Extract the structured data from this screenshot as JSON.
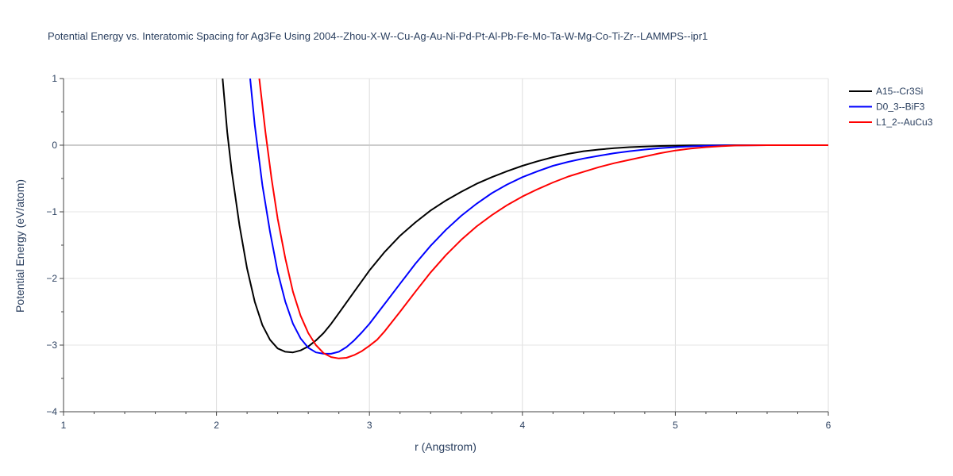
{
  "chart_data": {
    "type": "line",
    "title": "Potential Energy vs. Interatomic Spacing for Ag3Fe Using 2004--Zhou-X-W--Cu-Ag-Au-Ni-Pd-Pt-Al-Pb-Fe-Mo-Ta-W-Mg-Co-Ti-Zr--LAMMPS--ipr1",
    "xlabel": "r (Angstrom)",
    "ylabel": "Potential Energy (eV/atom)",
    "xlim": [
      1,
      6
    ],
    "ylim": [
      -4,
      1
    ],
    "x_ticks": [
      1,
      2,
      3,
      4,
      5,
      6
    ],
    "y_ticks": [
      1,
      0,
      -1,
      -2,
      -3,
      -4
    ],
    "x_tick_labels": [
      "1",
      "2",
      "3",
      "4",
      "5",
      "6"
    ],
    "y_tick_labels": [
      "1",
      "0",
      "−1",
      "−2",
      "−3",
      "−4"
    ],
    "grid": true,
    "legend_position": "top-right",
    "series": [
      {
        "name": "A15--Cr3Si",
        "color": "#000000",
        "x": [
          2.04,
          2.07,
          2.1,
          2.15,
          2.2,
          2.25,
          2.3,
          2.35,
          2.4,
          2.45,
          2.5,
          2.55,
          2.6,
          2.65,
          2.7,
          2.75,
          2.8,
          2.9,
          3.0,
          3.1,
          3.2,
          3.3,
          3.4,
          3.5,
          3.6,
          3.7,
          3.8,
          3.9,
          4.0,
          4.1,
          4.2,
          4.3,
          4.4,
          4.5,
          4.6,
          4.7,
          4.8,
          4.9,
          5.0,
          5.1,
          5.2,
          5.3,
          5.4,
          5.5,
          5.6,
          5.8,
          6.0
        ],
        "y": [
          1.0,
          0.2,
          -0.4,
          -1.2,
          -1.85,
          -2.35,
          -2.7,
          -2.92,
          -3.05,
          -3.1,
          -3.11,
          -3.08,
          -3.02,
          -2.93,
          -2.82,
          -2.68,
          -2.52,
          -2.2,
          -1.88,
          -1.6,
          -1.36,
          -1.16,
          -0.98,
          -0.83,
          -0.7,
          -0.58,
          -0.48,
          -0.39,
          -0.31,
          -0.24,
          -0.18,
          -0.13,
          -0.09,
          -0.065,
          -0.045,
          -0.03,
          -0.02,
          -0.012,
          -0.007,
          -0.004,
          -0.002,
          -0.001,
          0.0,
          0.0,
          0.0,
          0.0,
          0.0
        ]
      },
      {
        "name": "D0_3--BiF3",
        "color": "#0000ff",
        "x": [
          2.22,
          2.25,
          2.3,
          2.35,
          2.4,
          2.45,
          2.5,
          2.55,
          2.6,
          2.65,
          2.7,
          2.75,
          2.8,
          2.85,
          2.9,
          2.95,
          3.0,
          3.1,
          3.2,
          3.3,
          3.4,
          3.5,
          3.6,
          3.7,
          3.8,
          3.9,
          4.0,
          4.1,
          4.2,
          4.3,
          4.4,
          4.5,
          4.6,
          4.7,
          4.8,
          4.9,
          5.0,
          5.1,
          5.2,
          5.3,
          5.4,
          5.6,
          5.8,
          6.0
        ],
        "y": [
          1.0,
          0.3,
          -0.6,
          -1.3,
          -1.9,
          -2.35,
          -2.68,
          -2.9,
          -3.04,
          -3.11,
          -3.13,
          -3.13,
          -3.1,
          -3.03,
          -2.93,
          -2.81,
          -2.68,
          -2.38,
          -2.08,
          -1.78,
          -1.51,
          -1.27,
          -1.06,
          -0.88,
          -0.72,
          -0.59,
          -0.48,
          -0.39,
          -0.31,
          -0.25,
          -0.2,
          -0.16,
          -0.12,
          -0.09,
          -0.065,
          -0.045,
          -0.03,
          -0.018,
          -0.01,
          -0.005,
          -0.002,
          0.0,
          0.0,
          0.0
        ]
      },
      {
        "name": "L1_2--AuCu3",
        "color": "#ff0000",
        "x": [
          2.28,
          2.32,
          2.36,
          2.4,
          2.45,
          2.5,
          2.55,
          2.6,
          2.65,
          2.7,
          2.75,
          2.8,
          2.85,
          2.9,
          2.95,
          3.0,
          3.05,
          3.1,
          3.2,
          3.3,
          3.4,
          3.5,
          3.6,
          3.7,
          3.8,
          3.9,
          4.0,
          4.1,
          4.2,
          4.3,
          4.4,
          4.5,
          4.6,
          4.7,
          4.8,
          4.9,
          5.0,
          5.1,
          5.2,
          5.3,
          5.4,
          5.6,
          5.8,
          6.0
        ],
        "y": [
          1.0,
          0.2,
          -0.5,
          -1.1,
          -1.7,
          -2.2,
          -2.56,
          -2.82,
          -3.0,
          -3.12,
          -3.18,
          -3.2,
          -3.19,
          -3.15,
          -3.09,
          -3.01,
          -2.92,
          -2.79,
          -2.5,
          -2.2,
          -1.91,
          -1.65,
          -1.42,
          -1.22,
          -1.05,
          -0.9,
          -0.77,
          -0.66,
          -0.56,
          -0.47,
          -0.4,
          -0.33,
          -0.27,
          -0.22,
          -0.17,
          -0.12,
          -0.08,
          -0.05,
          -0.03,
          -0.015,
          -0.005,
          0.0,
          0.0,
          0.0
        ]
      }
    ]
  }
}
